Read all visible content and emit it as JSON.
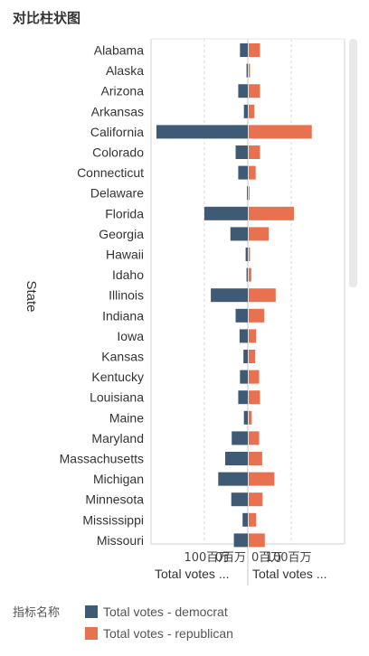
{
  "title": "对比柱状图",
  "chart_data": {
    "type": "bar",
    "orientation": "horizontal-diverging",
    "ylabel": "State",
    "categories": [
      "Alabama",
      "Alaska",
      "Arizona",
      "Arkansas",
      "California",
      "Colorado",
      "Connecticut",
      "Delaware",
      "Florida",
      "Georgia",
      "Hawaii",
      "Idaho",
      "Illinois",
      "Indiana",
      "Iowa",
      "Kansas",
      "Kentucky",
      "Louisiana",
      "Maine",
      "Maryland",
      "Massachusetts",
      "Michigan",
      "Minnesota",
      "Mississippi",
      "Missouri"
    ],
    "series": [
      {
        "name": "Total votes - democrat",
        "color": "#3e5a74",
        "values": [
          18,
          3,
          22,
          9,
          210,
          28,
          22,
          2,
          100,
          40,
          5,
          3,
          85,
          28,
          19,
          10,
          18,
          22,
          9,
          37,
          52,
          68,
          38,
          12,
          32
        ]
      },
      {
        "name": "Total votes - republican",
        "color": "#e8714f",
        "values": [
          26,
          3,
          26,
          13,
          145,
          26,
          16,
          2,
          104,
          46,
          3,
          6,
          62,
          36,
          17,
          15,
          24,
          26,
          7,
          24,
          31,
          59,
          32,
          17,
          37
        ]
      }
    ],
    "left_axis": {
      "ticks": [
        {
          "value": 100,
          "label": "100百万"
        },
        {
          "value": 0,
          "label": "0百万"
        }
      ],
      "label": "Total votes ..."
    },
    "right_axis": {
      "ticks": [
        {
          "value": 0,
          "label": "0百万"
        },
        {
          "value": 100,
          "label": "100百万"
        }
      ],
      "label": "Total votes ..."
    },
    "xlim": [
      0,
      210
    ],
    "grid": true,
    "legend_position": "bottom-left"
  },
  "legend": {
    "title": "指标名称",
    "items": [
      {
        "label": "Total votes - democrat",
        "color": "#3e5a74"
      },
      {
        "label": "Total votes - republican",
        "color": "#e8714f"
      }
    ]
  }
}
